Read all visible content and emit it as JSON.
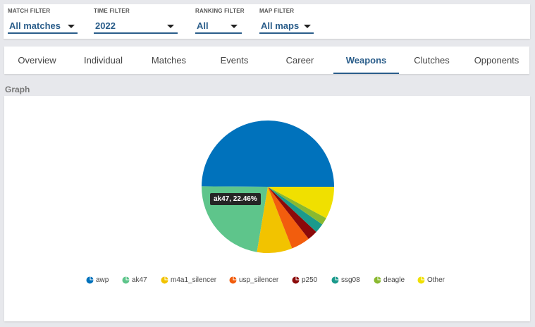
{
  "filters": [
    {
      "label": "MATCH FILTER",
      "value": "All matches"
    },
    {
      "label": "TIME FILTER",
      "value": "2022"
    },
    {
      "label": "RANKING FILTER",
      "value": "All"
    },
    {
      "label": "MAP FILTER",
      "value": "All maps"
    }
  ],
  "tabs": [
    {
      "label": "Overview"
    },
    {
      "label": "Individual"
    },
    {
      "label": "Matches"
    },
    {
      "label": "Events"
    },
    {
      "label": "Career"
    },
    {
      "label": "Weapons",
      "active": true
    },
    {
      "label": "Clutches"
    },
    {
      "label": "Opponents"
    }
  ],
  "section_title": "Graph",
  "tooltip": "ak47, 22.46%",
  "colors": {
    "accent": "#2a5d8a"
  },
  "chart_data": {
    "type": "pie",
    "series": [
      {
        "name": "awp",
        "value": 49.9,
        "color": "#0072bc"
      },
      {
        "name": "ak47",
        "value": 22.46,
        "color": "#5ec58b"
      },
      {
        "name": "m4a1_silencer",
        "value": 8.6,
        "color": "#f2c300"
      },
      {
        "name": "usp_silencer",
        "value": 4.6,
        "color": "#f25d0d"
      },
      {
        "name": "p250",
        "value": 2.5,
        "color": "#8b0a0a"
      },
      {
        "name": "ssg08",
        "value": 2.3,
        "color": "#1b9a8c"
      },
      {
        "name": "deagle",
        "value": 1.8,
        "color": "#8ab92f"
      },
      {
        "name": "Other",
        "value": 7.84,
        "color": "#f0e000"
      }
    ]
  }
}
